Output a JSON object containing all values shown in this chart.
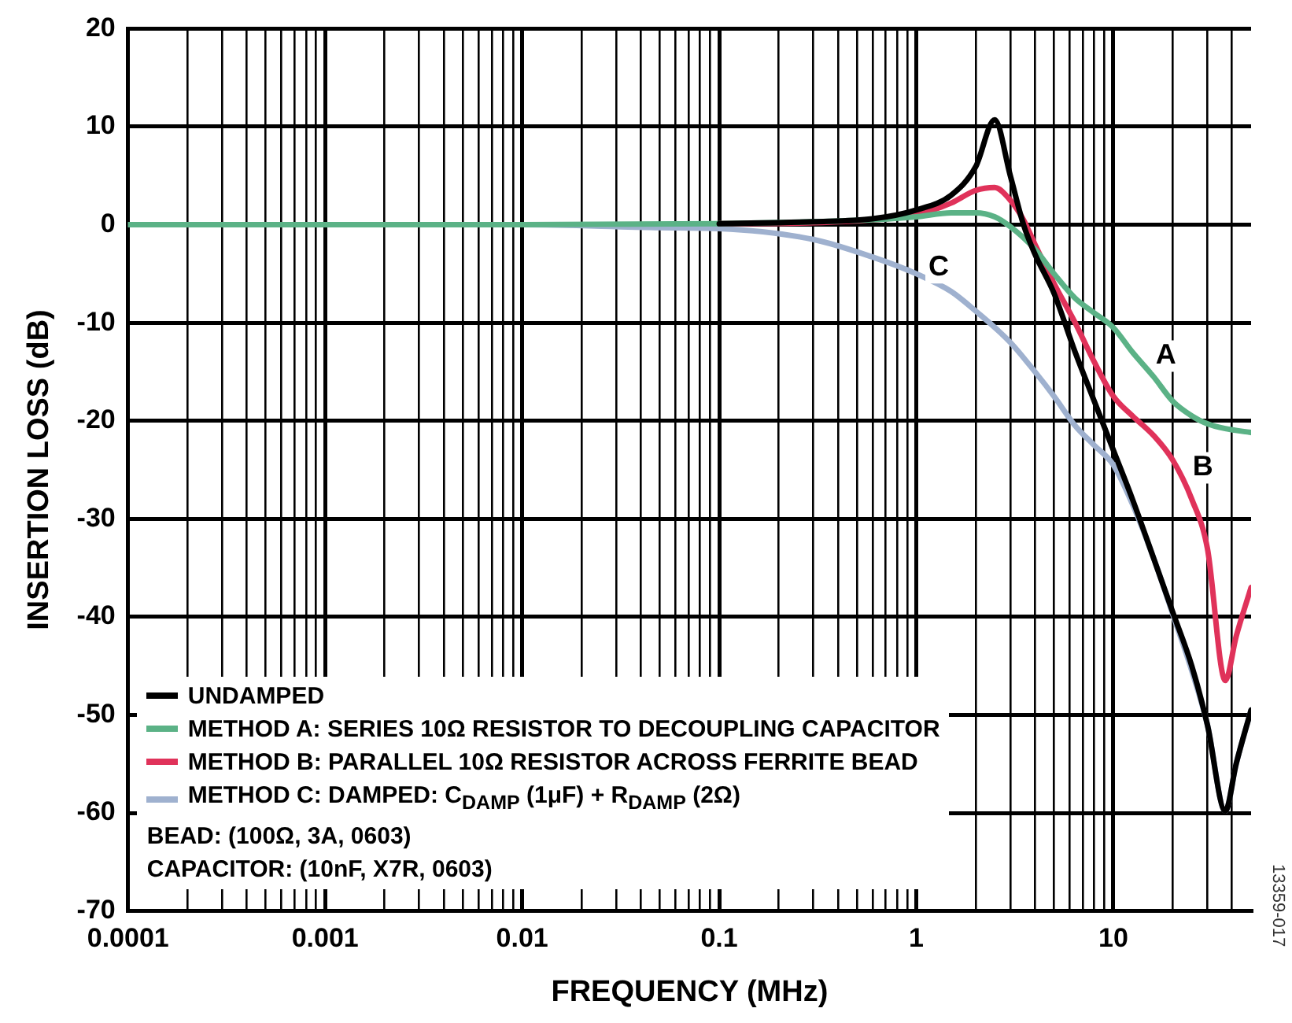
{
  "chart_data": {
    "type": "line",
    "xlabel": "FREQUENCY (MHz)",
    "ylabel": "INSERTION LOSS (dB)",
    "log": "x",
    "grid": true,
    "legend": "bottom left",
    "marker": "none",
    "line_style": "solid",
    "xlim": [
      0.0001,
      50
    ],
    "ylim": [
      -70,
      20
    ],
    "xticks": [
      0.0001,
      {
        "value": 0.0002,
        "label": null
      },
      {
        "value": 0.0003,
        "label": null
      },
      {
        "value": 0.0004,
        "label": null
      },
      {
        "value": 0.0005,
        "label": null
      },
      {
        "value": 0.0006,
        "label": null
      },
      {
        "value": 0.0007,
        "label": null
      },
      {
        "value": 0.0008,
        "label": null
      },
      {
        "value": 0.0009,
        "label": null
      },
      0.001,
      {
        "value": 0.002,
        "label": null
      },
      {
        "value": 0.003,
        "label": null
      },
      {
        "value": 0.004,
        "label": null
      },
      {
        "value": 0.005,
        "label": null
      },
      {
        "value": 0.006,
        "label": null
      },
      {
        "value": 0.007,
        "label": null
      },
      {
        "value": 0.008,
        "label": null
      },
      {
        "value": 0.009,
        "label": null
      },
      0.01,
      {
        "value": 0.02,
        "label": null
      },
      {
        "value": 0.03,
        "label": null
      },
      {
        "value": 0.04,
        "label": null
      },
      {
        "value": 0.05,
        "label": null
      },
      {
        "value": 0.06,
        "label": null
      },
      {
        "value": 0.07,
        "label": null
      },
      {
        "value": 0.08,
        "label": null
      },
      {
        "value": 0.09,
        "label": null
      },
      0.1,
      {
        "value": 0.2,
        "label": null
      },
      {
        "value": 0.3,
        "label": null
      },
      {
        "value": 0.4,
        "label": null
      },
      {
        "value": 0.5,
        "label": null
      },
      {
        "value": 0.6,
        "label": null
      },
      {
        "value": 0.7,
        "label": null
      },
      {
        "value": 0.8,
        "label": null
      },
      {
        "value": 0.9,
        "label": null
      },
      1,
      {
        "value": 2,
        "label": null
      },
      {
        "value": 3,
        "label": null
      },
      {
        "value": 4,
        "label": null
      },
      {
        "value": 5,
        "label": null
      },
      {
        "value": 6,
        "label": null
      },
      {
        "value": 7,
        "label": null
      },
      {
        "value": 8,
        "label": null
      },
      {
        "value": 9,
        "label": null
      },
      10,
      {
        "value": 20,
        "label": null
      },
      {
        "value": 30,
        "label": null
      },
      {
        "value": 40,
        "label": null
      }
    ],
    "yticks": [
      -70,
      -60,
      -50,
      -40,
      -30,
      -20,
      -10,
      0,
      10,
      20
    ],
    "series": [
      {
        "name": "UNDAMPED",
        "color": "#000000",
        "x": [
          0.1,
          0.3,
          0.6,
          1,
          1.5,
          2,
          2.5,
          3,
          3.5,
          4,
          5,
          6.4,
          8,
          10,
          12.5,
          16,
          20,
          25,
          30,
          37,
          42,
          50
        ],
        "values": [
          0.1,
          0.3,
          0.6,
          1.5,
          3,
          5.9,
          10.7,
          5,
          0,
          -3,
          -7,
          -13,
          -18,
          -23,
          -28,
          -34,
          -39.5,
          -45,
          -51,
          -59.8,
          -55,
          -49.5
        ]
      },
      {
        "name": "METHOD A: SERIES 10Ω RESISTOR TO DECOUPLING CAPACITOR",
        "color": "#5bb286",
        "x": [
          0.0001,
          0.001,
          0.01,
          0.1,
          0.3,
          0.6,
          1,
          1.5,
          2,
          2.5,
          3,
          4,
          5,
          6.4,
          8,
          10,
          12.5,
          16,
          20,
          25,
          30,
          37,
          50
        ],
        "values": [
          0,
          0,
          0,
          0.1,
          0.3,
          0.5,
          0.8,
          1.2,
          1.2,
          0.8,
          -0.2,
          -2.5,
          -5,
          -7.5,
          -9,
          -10.5,
          -13,
          -15.5,
          -18,
          -19.5,
          -20.3,
          -20.8,
          -21.2
        ]
      },
      {
        "name": "METHOD B: PARALLEL 10Ω RESISTOR ACROSS FERRITE BEAD",
        "color": "#e0325a",
        "x": [
          0.1,
          0.3,
          0.6,
          1,
          1.5,
          2,
          2.5,
          3,
          3.5,
          4,
          5,
          6.4,
          8,
          10,
          12.5,
          16,
          20,
          25,
          30,
          37,
          42,
          50
        ],
        "values": [
          0.1,
          0.2,
          0.5,
          1,
          2.2,
          3.5,
          3.8,
          2.5,
          0.5,
          -2,
          -6,
          -10,
          -14,
          -17.5,
          -19.5,
          -21.5,
          -24,
          -28,
          -33,
          -46.5,
          -42,
          -37
        ]
      },
      {
        "name": "METHOD C: DAMPED: C$_{DAMP}$ (1μF) + R$_{DAMP}$ (2Ω)",
        "color": "#9fb1cf",
        "x": [
          0.0001,
          0.001,
          0.01,
          0.05,
          0.1,
          0.3,
          0.6,
          1,
          1.5,
          2,
          3,
          4,
          5,
          6.4,
          8,
          10,
          12.5,
          16,
          20,
          25,
          30,
          37,
          42,
          50
        ],
        "values": [
          0,
          0,
          0,
          -0.3,
          -0.4,
          -1.5,
          -3.3,
          -5,
          -6.8,
          -8.8,
          -12,
          -15,
          -17.5,
          -20.5,
          -22.5,
          -24.5,
          -28.5,
          -34,
          -39.7,
          -45.5,
          -51,
          -59.8,
          -55,
          -49.5
        ]
      }
    ],
    "annotations": [
      {
        "text": "A",
        "x": 18.5,
        "y": -13.4
      },
      {
        "text": "B",
        "x": 28.5,
        "y": -24.8
      },
      {
        "text": "C",
        "x": 1.3,
        "y": -4.4
      },
      "BEAD: (100Ω, 3A, 0603)",
      "CAPACITOR: (10nF, X7R, 0603)",
      "13359-017"
    ]
  }
}
